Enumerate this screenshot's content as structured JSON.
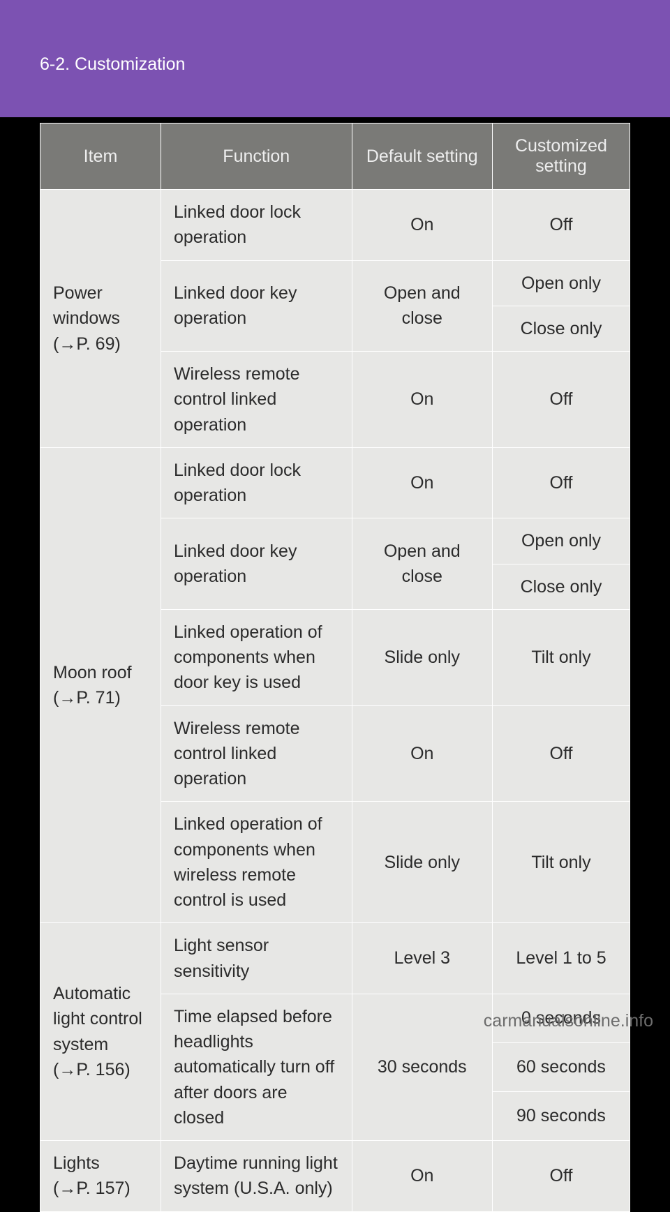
{
  "header": {
    "section": "6-2. Customization"
  },
  "columns": {
    "item": "Item",
    "function": "Function",
    "default": "Default setting",
    "custom": "Customized setting"
  },
  "groups": [
    {
      "item_name": "Power windows",
      "item_ref": "P. 69",
      "rows": [
        {
          "function": "Linked door lock operation",
          "default": "On",
          "custom": [
            "Off"
          ]
        },
        {
          "function": "Linked door key operation",
          "default": "Open and close",
          "custom": [
            "Open only",
            "Close only"
          ]
        },
        {
          "function": "Wireless remote control linked operation",
          "default": "On",
          "custom": [
            "Off"
          ]
        }
      ]
    },
    {
      "item_name": "Moon roof",
      "item_ref": "P. 71",
      "rows": [
        {
          "function": "Linked door lock operation",
          "default": "On",
          "custom": [
            "Off"
          ]
        },
        {
          "function": "Linked door key operation",
          "default": "Open and close",
          "custom": [
            "Open only",
            "Close only"
          ]
        },
        {
          "function": "Linked operation of components when door key is used",
          "default": "Slide only",
          "custom": [
            "Tilt only"
          ]
        },
        {
          "function": "Wireless remote control linked operation",
          "default": "On",
          "custom": [
            "Off"
          ]
        },
        {
          "function": "Linked operation of components when wireless remote control is used",
          "default": "Slide only",
          "custom": [
            "Tilt only"
          ]
        }
      ]
    },
    {
      "item_name": "Automatic light control system",
      "item_ref": "P. 156",
      "rows": [
        {
          "function": "Light sensor sensitivity",
          "default": "Level 3",
          "custom": [
            "Level 1 to 5"
          ]
        },
        {
          "function": "Time elapsed before headlights automatically turn off after doors are closed",
          "default": "30 seconds",
          "custom": [
            "0 seconds",
            "60 seconds",
            "90 seconds"
          ]
        }
      ]
    },
    {
      "item_name": "Lights",
      "item_ref": "P. 157",
      "rows": [
        {
          "function": "Daytime running light system (U.S.A. only)",
          "default": "On",
          "custom": [
            "Off"
          ]
        }
      ]
    }
  ],
  "watermark": "carmanualsonline.info",
  "style": {
    "header_bg": "#7c52b2",
    "header_fg": "#ffffff",
    "page_bg": "#000000",
    "th_bg": "#7a7a77",
    "th_fg": "#eeeeee",
    "cell_bg": "#e7e7e5",
    "cell_fg": "#2b2b2b",
    "border": "#ffffff",
    "font_size_pt": 19,
    "arrow_glyph": "→"
  }
}
